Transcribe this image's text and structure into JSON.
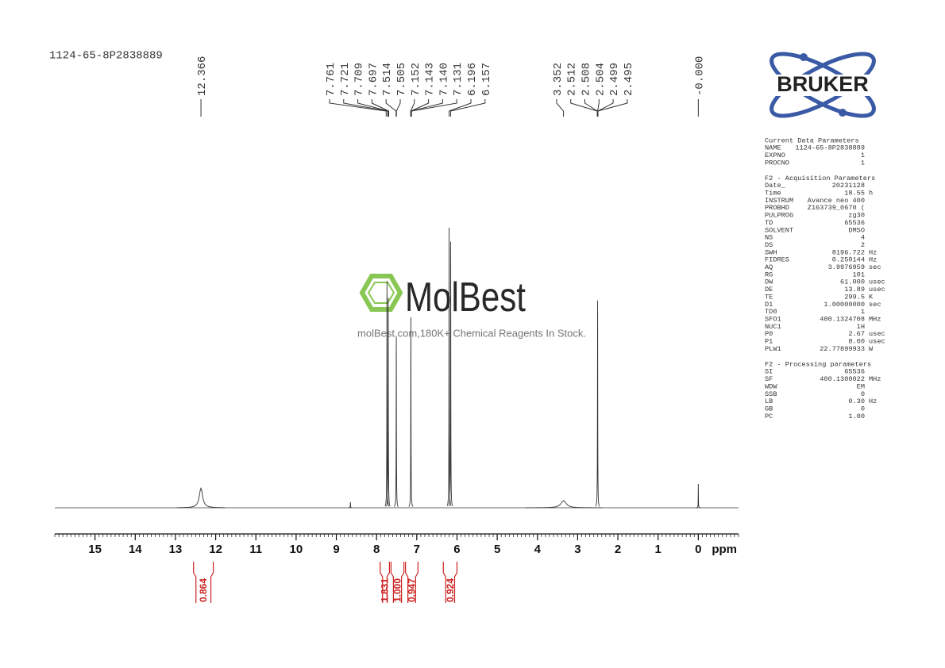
{
  "chart_data": {
    "type": "line",
    "title": "1124-65-8P2838889",
    "x_label": "ppm",
    "xlim": [
      16,
      -1
    ],
    "xticks": [
      15,
      14,
      13,
      12,
      11,
      10,
      9,
      8,
      7,
      6,
      5,
      4,
      3,
      2,
      1,
      0
    ],
    "minor_step": 0.1,
    "ylim": [
      0,
      100
    ],
    "color": "#333333",
    "x": [
      12.366,
      8.65,
      7.741,
      7.709,
      7.509,
      7.146,
      6.196,
      6.157,
      3.35,
      2.504,
      0.0
    ],
    "values": [
      7,
      2,
      81,
      75,
      61,
      68,
      100,
      95,
      2.5,
      74,
      8.5
    ],
    "widths": [
      0.05,
      0.004,
      0.004,
      0.004,
      0.004,
      0.004,
      0.004,
      0.004,
      0.08,
      0.004,
      0.003
    ],
    "peak_labels": [
      12.366,
      7.761,
      7.721,
      7.709,
      7.697,
      7.514,
      7.505,
      7.152,
      7.143,
      {
        "value": 7.14,
        "label": "7.140"
      },
      7.131,
      6.196,
      6.157,
      3.352,
      2.512,
      2.508,
      2.504,
      2.499,
      2.495,
      {
        "value": 0,
        "label": "-0.000"
      }
    ],
    "integrals": {
      "color": "#cc2222",
      "values": [
        0.864,
        1.831,
        {
          "value": 1,
          "label": "1.000"
        },
        0.947,
        0.924
      ],
      "ranges": [
        [
          12.55,
          12.06
        ],
        [
          7.91,
          7.68
        ],
        [
          7.64,
          7.32
        ],
        [
          7.28,
          6.97
        ],
        [
          6.34,
          6.0
        ]
      ]
    }
  },
  "logo": "BRUKER",
  "watermark": {
    "brand": "MolBest",
    "tagline": "molBest.com,180K+ Chemical Reagents In Stock."
  },
  "parameters": [
    {
      "title": "Current Data Parameters",
      "rows": [
        [
          "NAME",
          "1124-65-8P2838889"
        ],
        [
          "EXPNO",
          "1"
        ],
        [
          "PROCNO",
          "1"
        ]
      ]
    },
    {
      "title": "F2 - Acquisition Parameters",
      "rows": [
        [
          "Date_",
          "20231128"
        ],
        [
          "Time",
          "18.55",
          "h"
        ],
        [
          "INSTRUM",
          "Avance neo 400"
        ],
        [
          "PROBHD",
          "Z163739_0670 ("
        ],
        [
          "PULPROG",
          "zg30"
        ],
        [
          "TD",
          "65536"
        ],
        [
          "SOLVENT",
          "DMSO"
        ],
        [
          "NS",
          "4"
        ],
        [
          "DS",
          "2"
        ],
        [
          "SWH",
          "8196.722",
          "Hz"
        ],
        [
          "FIDRES",
          "0.250144",
          "Hz"
        ],
        [
          "AQ",
          "3.9976959",
          "sec"
        ],
        [
          "RG",
          "101"
        ],
        [
          "DW",
          "61.000",
          "usec"
        ],
        [
          "DE",
          "13.89",
          "usec"
        ],
        [
          "TE",
          "299.5",
          "K"
        ],
        [
          "D1",
          "1.00000000",
          "sec"
        ],
        [
          "TD0",
          "1"
        ],
        [
          "SFO1",
          "400.1324708",
          "MHz"
        ],
        [
          "NUC1",
          "1H"
        ],
        [
          "P0",
          "2.67",
          "usec"
        ],
        [
          "P1",
          "8.00",
          "usec"
        ],
        [
          "PLW1",
          "22.77899933",
          "W"
        ]
      ]
    },
    {
      "title": "F2 - Processing parameters",
      "rows": [
        [
          "SI",
          "65536"
        ],
        [
          "SF",
          "400.1300022",
          "MHz"
        ],
        [
          "WDW",
          "EM"
        ],
        [
          "SSB",
          "0"
        ],
        [
          "LB",
          "0.30",
          "Hz"
        ],
        [
          "GB",
          "0"
        ],
        [
          "PC",
          "1.00"
        ]
      ]
    }
  ]
}
